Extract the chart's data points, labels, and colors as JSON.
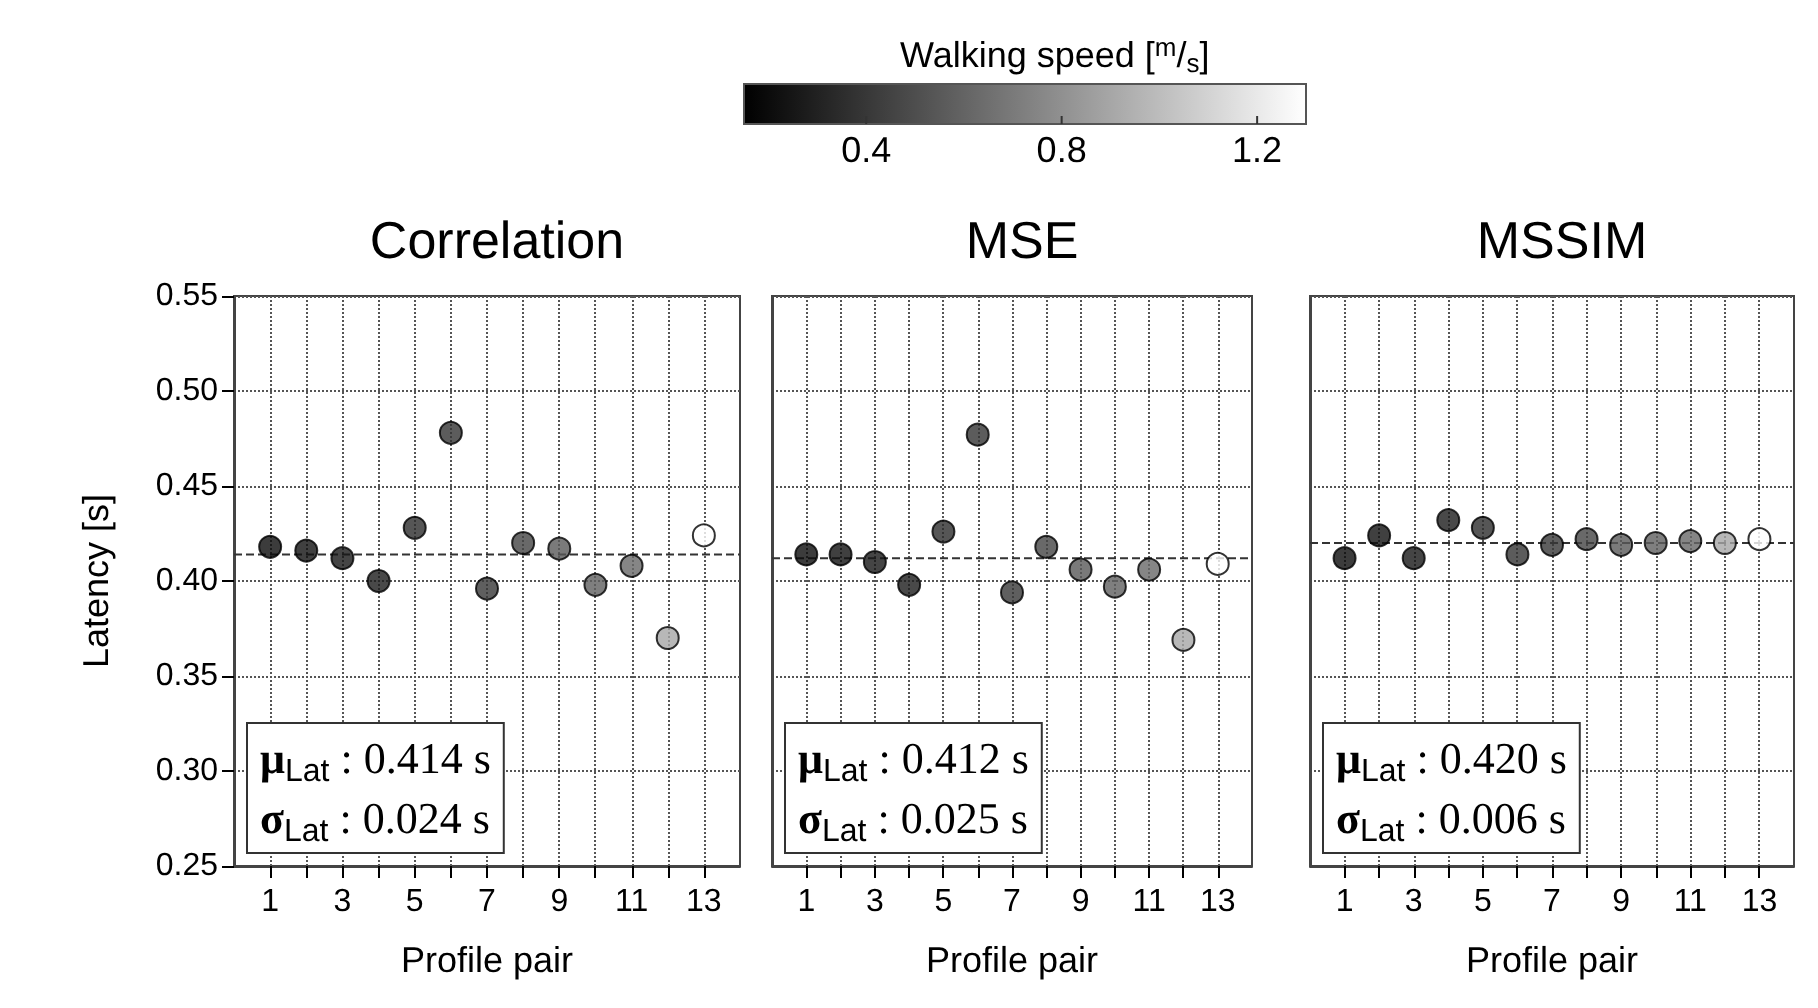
{
  "chart_data": [
    {
      "type": "scatter",
      "title": "Correlation",
      "xlabel": "Profile pair",
      "ylabel": "Latency [s]",
      "x": [
        1,
        2,
        3,
        4,
        5,
        6,
        7,
        8,
        9,
        10,
        11,
        12,
        13
      ],
      "series": [
        {
          "values": [
            0.418,
            0.416,
            0.412,
            0.4,
            0.428,
            0.478,
            0.396,
            0.42,
            0.417,
            0.398,
            0.408,
            0.37,
            0.424
          ],
          "colors": [
            "#0b0b0b",
            "#101010",
            "#161616",
            "#1b1b1b",
            "#2c2c2c",
            "#333333",
            "#373737",
            "#434343",
            "#595959",
            "#5f5f5f",
            "#686868",
            "#a6a6a6",
            "#ffffff"
          ]
        }
      ],
      "marker": "circle",
      "grid": true,
      "xlim": [
        0,
        14
      ],
      "xticks": [
        1,
        {
          "value": 2,
          "label": null
        },
        3,
        {
          "value": 4,
          "label": null
        },
        5,
        {
          "value": 6,
          "label": null
        },
        7,
        {
          "value": 8,
          "label": null
        },
        9,
        {
          "value": 10,
          "label": null
        },
        11,
        {
          "value": 12,
          "label": null
        },
        13
      ],
      "ylim": [
        0.25,
        0.55
      ],
      "yticks": [
        {
          "value": 0.25,
          "label": "0.25"
        },
        {
          "value": 0.3,
          "label": "0.30"
        },
        {
          "value": 0.35,
          "label": "0.35"
        },
        {
          "value": 0.4,
          "label": "0.40"
        },
        {
          "value": 0.45,
          "label": "0.45"
        },
        {
          "value": 0.5,
          "label": "0.50"
        },
        {
          "value": 0.55,
          "label": "0.55"
        }
      ],
      "ref_lines": [
        {
          "axis": "y",
          "value": 0.414,
          "line_style": "dashed"
        }
      ],
      "annotations": [
        "μ$_{Lat}$ : 0.414 s",
        "σ$_{Lat}$ : 0.024 s"
      ]
    },
    {
      "type": "scatter",
      "title": "MSE",
      "xlabel": "Profile pair",
      "x": [
        1,
        2,
        3,
        4,
        5,
        6,
        7,
        8,
        9,
        10,
        11,
        12,
        13
      ],
      "series": [
        {
          "values": [
            0.414,
            0.414,
            0.41,
            0.398,
            0.426,
            0.477,
            0.394,
            0.418,
            0.406,
            0.397,
            0.406,
            0.369,
            0.409
          ],
          "cvalues": [
            0.2,
            0.22,
            0.25,
            0.27,
            0.35,
            0.38,
            0.4,
            0.45,
            0.55,
            0.58,
            0.62,
            0.9,
            1.3
          ]
        }
      ],
      "clim": [
        0.15,
        1.3
      ],
      "clabel": "Walking speed [$^{m}$/$_{s}$]",
      "cticks": [
        0.4,
        0.8,
        1.2
      ],
      "marker": "circle",
      "grid": true,
      "tick_labels": "x",
      "xlim": [
        0,
        14
      ],
      "xticks": [
        1,
        {
          "value": 2,
          "label": null
        },
        3,
        {
          "value": 4,
          "label": null
        },
        5,
        {
          "value": 6,
          "label": null
        },
        7,
        {
          "value": 8,
          "label": null
        },
        9,
        {
          "value": 10,
          "label": null
        },
        11,
        {
          "value": 12,
          "label": null
        },
        13
      ],
      "ylim": [
        0.25,
        0.55
      ],
      "yticks": [
        0.25,
        0.3,
        0.35,
        0.4,
        0.45,
        0.5,
        0.55
      ],
      "ref_lines": [
        {
          "axis": "y",
          "value": 0.412,
          "line_style": "dashed"
        }
      ],
      "annotations": [
        "μ$_{Lat}$ : 0.412 s",
        "σ$_{Lat}$ : 0.025 s"
      ]
    },
    {
      "type": "scatter",
      "title": "MSSIM",
      "xlabel": "Profile pair",
      "x": [
        1,
        2,
        3,
        4,
        5,
        6,
        7,
        8,
        9,
        10,
        11,
        12,
        13
      ],
      "series": [
        {
          "values": [
            0.412,
            0.424,
            0.412,
            0.432,
            0.428,
            0.414,
            0.419,
            0.422,
            0.419,
            0.42,
            0.421,
            0.42,
            0.422
          ],
          "colors": [
            "#0b0b0b",
            "#101010",
            "#161616",
            "#1b1b1b",
            "#2c2c2c",
            "#333333",
            "#373737",
            "#434343",
            "#595959",
            "#5f5f5f",
            "#686868",
            "#a6a6a6",
            "#ffffff"
          ]
        }
      ],
      "marker": "circle",
      "grid": true,
      "tick_labels": "x",
      "xlim": [
        0,
        14
      ],
      "xticks": [
        1,
        {
          "value": 2,
          "label": null
        },
        3,
        {
          "value": 4,
          "label": null
        },
        5,
        {
          "value": 6,
          "label": null
        },
        7,
        {
          "value": 8,
          "label": null
        },
        9,
        {
          "value": 10,
          "label": null
        },
        11,
        {
          "value": 12,
          "label": null
        },
        13
      ],
      "ylim": [
        0.25,
        0.55
      ],
      "yticks": [
        0.25,
        0.3,
        0.35,
        0.4,
        0.45,
        0.5,
        0.55
      ],
      "ref_lines": [
        {
          "axis": "y",
          "value": 0.42,
          "line_style": "dashed"
        }
      ],
      "annotations": [
        "μ$_{Lat}$ : 0.420 s",
        "σ$_{Lat}$ : 0.006 s"
      ]
    }
  ]
}
